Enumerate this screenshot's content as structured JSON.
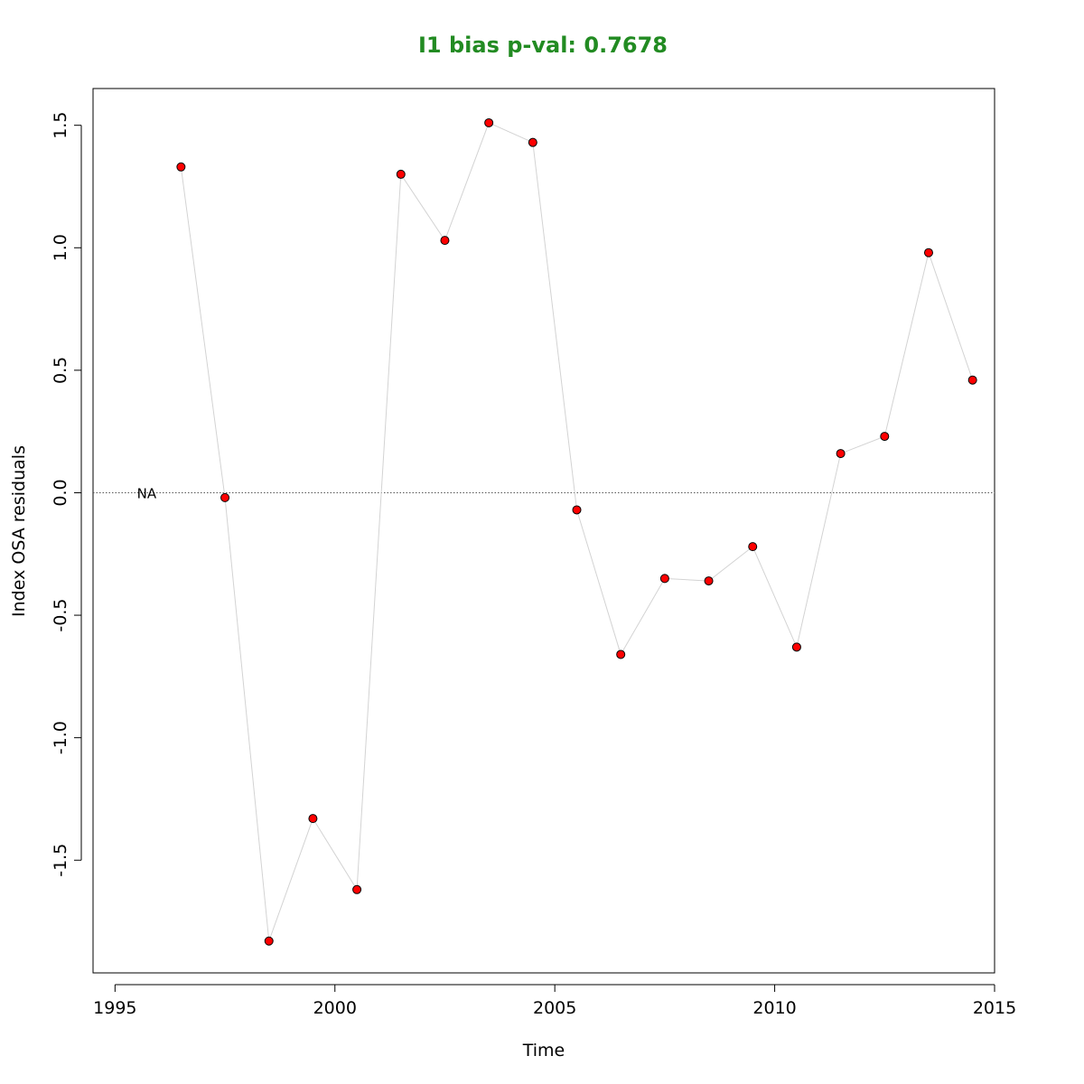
{
  "chart_data": {
    "type": "line",
    "title": "I1 bias p-val: 0.7678",
    "title_color": "#228B22",
    "xlabel": "Time",
    "ylabel": "Index OSA residuals",
    "xlim": [
      1994.5,
      2015.0
    ],
    "ylim": [
      -1.96,
      1.65
    ],
    "x_ticks": [
      1995,
      2000,
      2005,
      2010,
      2015
    ],
    "x_tick_labels": [
      "1995",
      "2000",
      "2005",
      "2010",
      "2015"
    ],
    "y_ticks": [
      -1.5,
      -1.0,
      -0.5,
      0.0,
      0.5,
      1.0,
      1.5
    ],
    "y_tick_labels": [
      "-1.5",
      "-1.0",
      "-0.5",
      "0.0",
      "0.5",
      "1.0",
      "1.5"
    ],
    "reference_line": {
      "y": 0,
      "style": "dotted",
      "color": "#555555"
    },
    "annotation": {
      "text": "NA",
      "x": 1995.5,
      "y": 0
    },
    "series": [
      {
        "x": [
          1996.5,
          1997.5,
          1998.5,
          1999.5,
          2000.5,
          2001.5,
          2002.5,
          2003.5,
          2004.5,
          2005.5,
          2006.5,
          2007.5,
          2008.5,
          2009.5,
          2010.5,
          2011.5,
          2012.5,
          2013.5,
          2014.5
        ],
        "y": [
          1.33,
          -0.02,
          -1.83,
          -1.33,
          -1.62,
          1.3,
          1.03,
          1.51,
          1.43,
          -0.07,
          -0.66,
          -0.35,
          -0.36,
          -0.22,
          -0.63,
          0.16,
          0.23,
          0.98,
          0.46
        ],
        "line_color": "#d3d3d3",
        "point_fill": "#ff0000",
        "point_stroke": "#000000"
      }
    ]
  }
}
